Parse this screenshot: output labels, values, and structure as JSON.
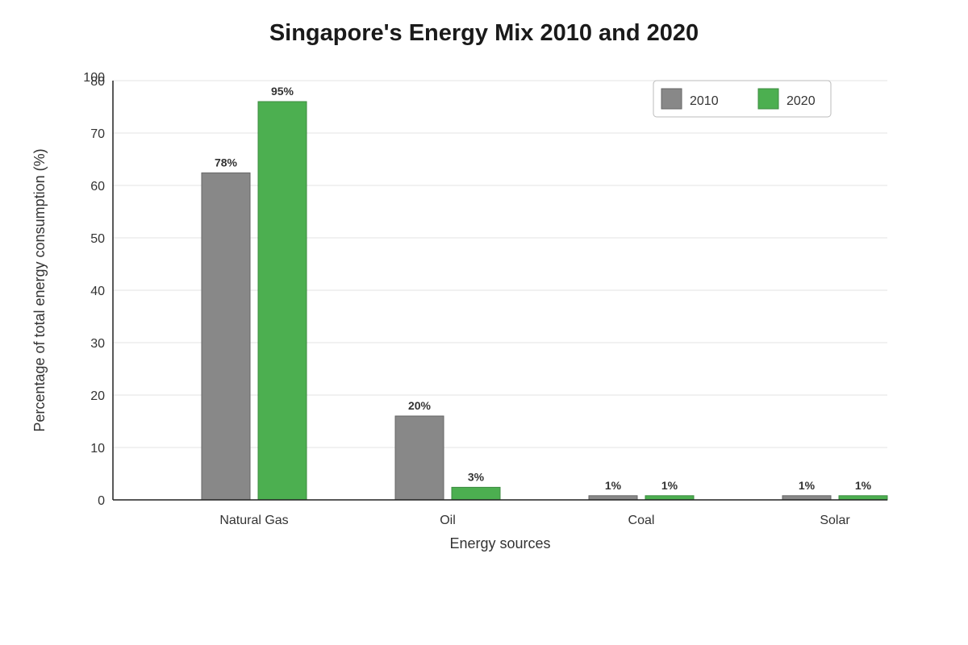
{
  "chart_data": {
    "type": "bar",
    "title": "Singapore's Energy Mix 2010 and 2020",
    "xlabel": "Energy sources",
    "ylabel": "Percentage of total energy consumption (%)",
    "categories": [
      "Natural Gas",
      "Oil",
      "Coal",
      "Solar"
    ],
    "series": [
      {
        "name": "2010",
        "color": "#888888",
        "values": [
          62.4,
          16.0,
          0.8,
          0.8
        ],
        "labels": [
          "78%",
          "20%",
          "1%",
          "1%"
        ]
      },
      {
        "name": "2020",
        "color": "#4caf50",
        "values": [
          76.0,
          2.4,
          0.8,
          0.8
        ],
        "labels": [
          "95%",
          "3%",
          "1%",
          "1%"
        ]
      }
    ],
    "ylim": [
      0,
      80
    ],
    "yticks": [
      0,
      10,
      20,
      30,
      40,
      50,
      60,
      70,
      80
    ],
    "ytick_overlap_label": "100",
    "grid": true,
    "legend": "top-right"
  }
}
